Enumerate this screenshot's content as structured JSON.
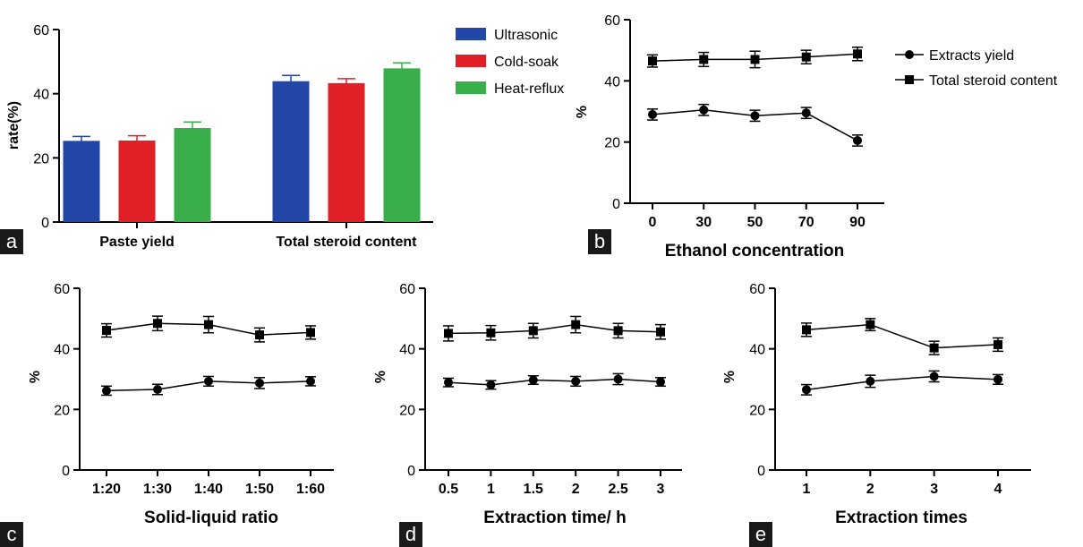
{
  "figure": {
    "panel_labels": [
      "a",
      "b",
      "c",
      "d",
      "e"
    ]
  },
  "chart_data": [
    {
      "panel": "a",
      "type": "bar",
      "categories": [
        "Paste yield",
        "Total steroid content"
      ],
      "ylabel": "rate(%)",
      "xlabel": "",
      "ylim": [
        0,
        60
      ],
      "yticks": [
        0,
        20,
        40,
        60
      ],
      "grid": false,
      "legend_position": "right",
      "series": [
        {
          "name": "Ultrasonic",
          "color": "#2347a8",
          "values": [
            25.3,
            43.9
          ],
          "errors": [
            1.4,
            1.8
          ]
        },
        {
          "name": "Cold-soak",
          "color": "#e11f26",
          "values": [
            25.4,
            43.3
          ],
          "errors": [
            1.5,
            1.4
          ]
        },
        {
          "name": "Heat-reflux",
          "color": "#3aae4a",
          "values": [
            29.3,
            47.9
          ],
          "errors": [
            1.9,
            1.7
          ]
        }
      ]
    },
    {
      "panel": "b",
      "type": "line",
      "xlabel": "Ethanol concentration",
      "ylabel": "%",
      "x": [
        "0",
        "30",
        "50",
        "70",
        "90"
      ],
      "ylim": [
        0,
        60
      ],
      "yticks": [
        0,
        20,
        40,
        60
      ],
      "grid": false,
      "legend_position": "right",
      "series": [
        {
          "name": "Extracts yield",
          "marker": "circle",
          "values": [
            29.0,
            30.5,
            28.6,
            29.5,
            20.5
          ],
          "errors": [
            1.8,
            1.8,
            1.8,
            1.8,
            1.8
          ]
        },
        {
          "name": "Total steroid content",
          "marker": "square",
          "values": [
            46.5,
            47.0,
            47.0,
            47.8,
            48.8
          ],
          "errors": [
            2.0,
            2.3,
            2.7,
            2.2,
            2.2
          ]
        }
      ]
    },
    {
      "panel": "c",
      "type": "line",
      "xlabel": "Solid-liquid ratio",
      "ylabel": "%",
      "x": [
        "1:20",
        "1:30",
        "1:40",
        "1:50",
        "1:60"
      ],
      "ylim": [
        0,
        60
      ],
      "yticks": [
        0,
        20,
        40,
        60
      ],
      "grid": false,
      "series": [
        {
          "marker": "circle",
          "values": [
            26.2,
            26.6,
            29.3,
            28.7,
            29.3
          ],
          "errors": [
            1.5,
            1.7,
            1.6,
            1.8,
            1.5
          ]
        },
        {
          "marker": "square",
          "values": [
            46.1,
            48.4,
            48.0,
            44.6,
            45.4
          ],
          "errors": [
            2.2,
            2.4,
            2.7,
            2.3,
            2.2
          ]
        }
      ]
    },
    {
      "panel": "d",
      "type": "line",
      "xlabel": "Extraction time/ h",
      "ylabel": "%",
      "x": [
        "0.5",
        "1",
        "1.5",
        "2",
        "2.5",
        "3"
      ],
      "ylim": [
        0,
        60
      ],
      "yticks": [
        0,
        20,
        40,
        60
      ],
      "grid": false,
      "series": [
        {
          "marker": "circle",
          "values": [
            28.9,
            28.1,
            29.7,
            29.3,
            30.0,
            29.1
          ],
          "errors": [
            1.4,
            1.4,
            1.4,
            1.6,
            1.8,
            1.4
          ]
        },
        {
          "marker": "square",
          "values": [
            45.1,
            45.3,
            46.0,
            48.0,
            46.0,
            45.6
          ],
          "errors": [
            2.5,
            2.4,
            2.4,
            2.7,
            2.4,
            2.4
          ]
        }
      ]
    },
    {
      "panel": "e",
      "type": "line",
      "xlabel": "Extraction times",
      "ylabel": "%",
      "x": [
        "1",
        "2",
        "3",
        "4"
      ],
      "ylim": [
        0,
        60
      ],
      "yticks": [
        0,
        20,
        40,
        60
      ],
      "grid": false,
      "series": [
        {
          "marker": "circle",
          "values": [
            26.5,
            29.3,
            30.9,
            29.9
          ],
          "errors": [
            1.7,
            2.0,
            1.8,
            1.6
          ]
        },
        {
          "marker": "square",
          "values": [
            46.3,
            48.0,
            40.3,
            41.4
          ],
          "errors": [
            2.2,
            2.0,
            2.2,
            2.2
          ]
        }
      ]
    }
  ]
}
